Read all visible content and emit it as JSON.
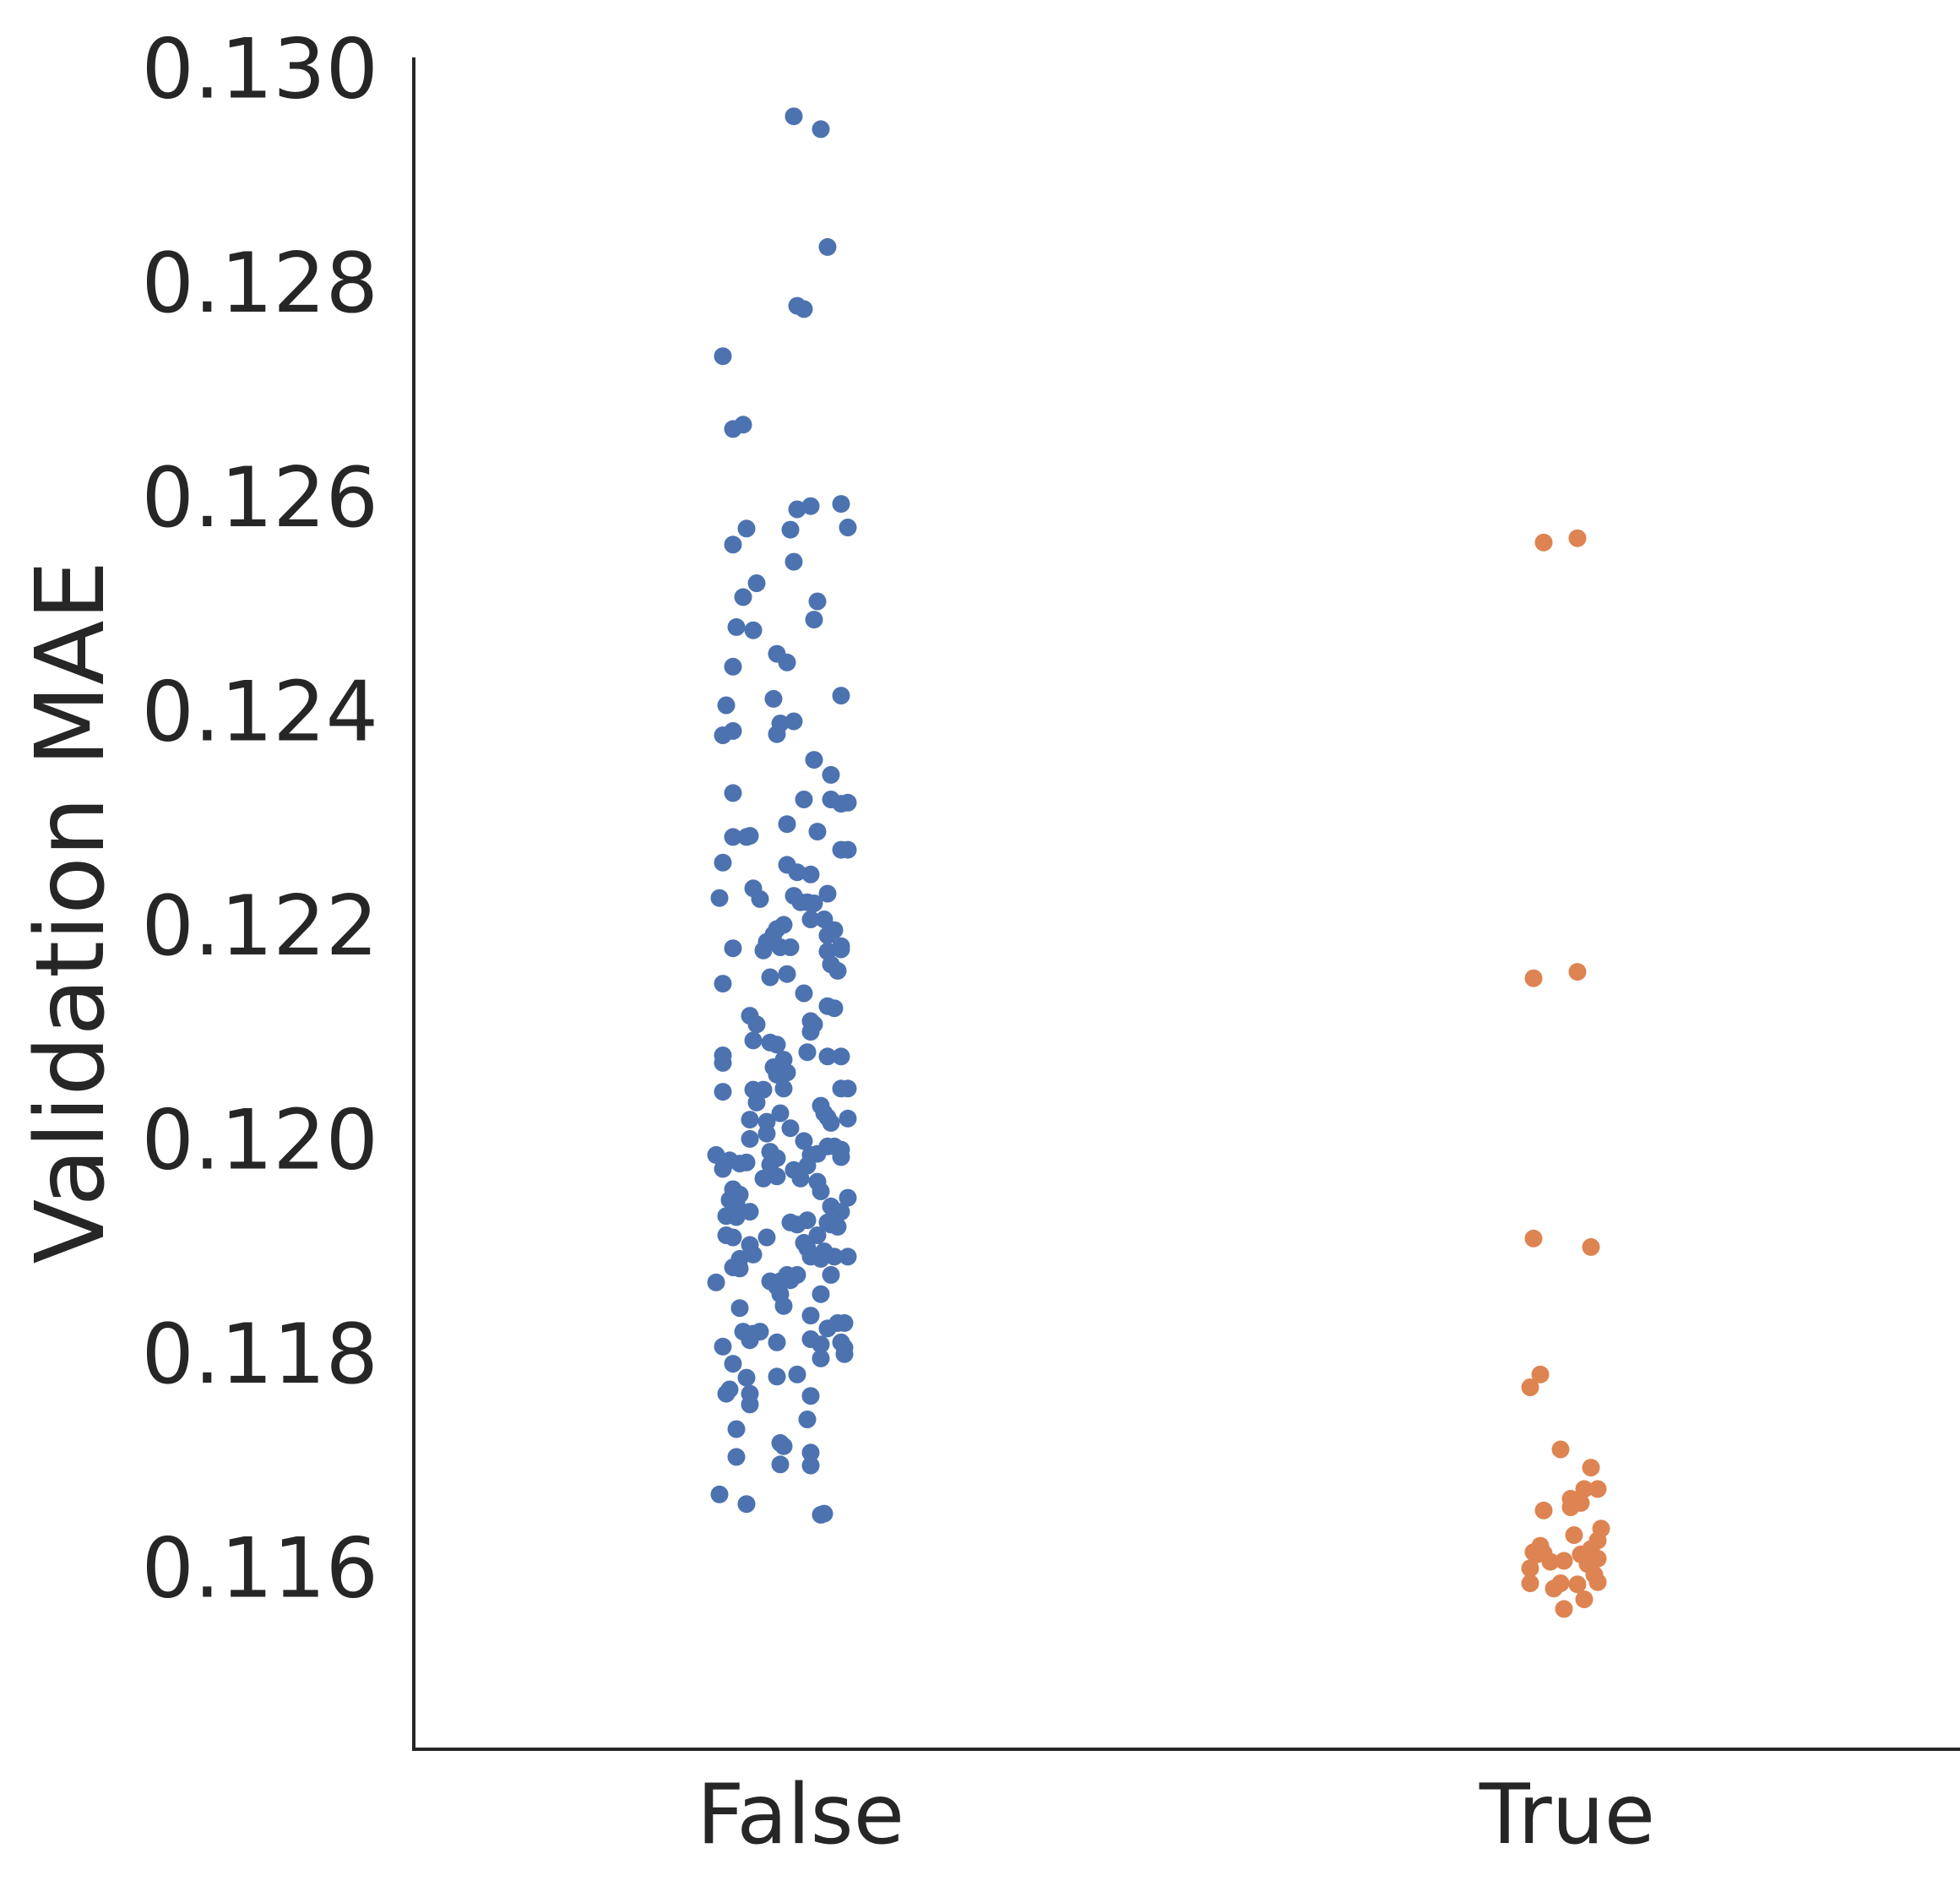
{
  "chart_data": {
    "type": "scatter",
    "ylabel": "Validation MAE",
    "xlabel": "",
    "categories": [
      "False",
      "True"
    ],
    "ylim": [
      0.1143,
      0.1301
    ],
    "yticks": [
      "0.116",
      "0.118",
      "0.120",
      "0.122",
      "0.124",
      "0.126",
      "0.128",
      "0.130"
    ],
    "grid": false,
    "legend": "none",
    "series": [
      {
        "category": "False",
        "color": "#4c72b0",
        "points": [
          [
            -0.02,
            0.12955
          ],
          [
            0.06,
            0.12943
          ],
          [
            0.08,
            0.12833
          ],
          [
            -0.01,
            0.12778
          ],
          [
            0.01,
            0.12775
          ],
          [
            -0.23,
            0.12731
          ],
          [
            -0.2,
            0.12663
          ],
          [
            -0.17,
            0.12667
          ],
          [
            -0.2,
            0.12555
          ],
          [
            -0.16,
            0.1257
          ],
          [
            -0.01,
            0.12588
          ],
          [
            0.03,
            0.12591
          ],
          [
            0.12,
            0.12593
          ],
          [
            -0.03,
            0.12569
          ],
          [
            0.14,
            0.12571
          ],
          [
            -0.02,
            0.12539
          ],
          [
            -0.17,
            0.12506
          ],
          [
            -0.13,
            0.12519
          ],
          [
            0.05,
            0.12502
          ],
          [
            0.04,
            0.12485
          ],
          [
            -0.19,
            0.12478
          ],
          [
            -0.14,
            0.12475
          ],
          [
            -0.07,
            0.12453
          ],
          [
            -0.04,
            0.12445
          ],
          [
            -0.2,
            0.12441
          ],
          [
            0.12,
            0.12414
          ],
          [
            -0.22,
            0.12405
          ],
          [
            -0.08,
            0.12411
          ],
          [
            -0.23,
            0.12377
          ],
          [
            -0.2,
            0.12381
          ],
          [
            -0.06,
            0.12388
          ],
          [
            -0.02,
            0.1239
          ],
          [
            -0.07,
            0.12378
          ],
          [
            0.04,
            0.12354
          ],
          [
            0.09,
            0.1234
          ],
          [
            -0.2,
            0.12323
          ],
          [
            0.01,
            0.12317
          ],
          [
            0.09,
            0.12317
          ],
          [
            0.12,
            0.12313
          ],
          [
            0.14,
            0.12314
          ],
          [
            -0.04,
            0.12294
          ],
          [
            0.05,
            0.12287
          ],
          [
            -0.2,
            0.12282
          ],
          [
            -0.16,
            0.12282
          ],
          [
            -0.15,
            0.12283
          ],
          [
            0.12,
            0.1227
          ],
          [
            0.14,
            0.1227
          ],
          [
            -0.23,
            0.12258
          ],
          [
            -0.04,
            0.12256
          ],
          [
            -0.01,
            0.12249
          ],
          [
            0.03,
            0.12247
          ],
          [
            -0.14,
            0.12234
          ],
          [
            -0.12,
            0.12224
          ],
          [
            -0.02,
            0.12227
          ],
          [
            0.08,
            0.12229
          ],
          [
            -0.24,
            0.12225
          ],
          [
            0.02,
            0.12221
          ],
          [
            0.04,
            0.1222
          ],
          [
            0.0,
            0.12221
          ],
          [
            -0.05,
            0.122
          ],
          [
            -0.07,
            0.12196
          ],
          [
            0.03,
            0.12205
          ],
          [
            0.07,
            0.12205
          ],
          [
            -0.08,
            0.12191
          ],
          [
            0.1,
            0.12195
          ],
          [
            -0.1,
            0.12184
          ],
          [
            -0.11,
            0.12176
          ],
          [
            -0.06,
            0.12179
          ],
          [
            -0.03,
            0.12179
          ],
          [
            0.08,
            0.1219
          ],
          [
            0.12,
            0.1218
          ],
          [
            -0.2,
            0.12178
          ],
          [
            0.08,
            0.12175
          ],
          [
            0.12,
            0.12177
          ],
          [
            0.09,
            0.12163
          ],
          [
            0.11,
            0.12157
          ],
          [
            -0.09,
            0.12151
          ],
          [
            -0.04,
            0.12154
          ],
          [
            0.01,
            0.12136
          ],
          [
            -0.23,
            0.12145
          ],
          [
            0.08,
            0.12124
          ],
          [
            0.1,
            0.12122
          ],
          [
            -0.15,
            0.12115
          ],
          [
            -0.13,
            0.12107
          ],
          [
            0.03,
            0.1211
          ],
          [
            0.04,
            0.12107
          ],
          [
            0.03,
            0.121
          ],
          [
            -0.14,
            0.12092
          ],
          [
            -0.09,
            0.1209
          ],
          [
            -0.07,
            0.12088
          ],
          [
            -0.23,
            0.12078
          ],
          [
            -0.23,
            0.12071
          ],
          [
            0.02,
            0.12081
          ],
          [
            0.08,
            0.12077
          ],
          [
            0.12,
            0.12077
          ],
          [
            -0.05,
            0.12074
          ],
          [
            -0.08,
            0.12067
          ],
          [
            -0.06,
            0.12062
          ],
          [
            -0.07,
            0.1206
          ],
          [
            -0.04,
            0.12062
          ],
          [
            -0.23,
            0.12044
          ],
          [
            -0.14,
            0.12046
          ],
          [
            -0.11,
            0.12046
          ],
          [
            -0.05,
            0.12047
          ],
          [
            0.06,
            0.12031
          ],
          [
            0.12,
            0.12047
          ],
          [
            0.14,
            0.12047
          ],
          [
            -0.13,
            0.12034
          ],
          [
            -0.06,
            0.12024
          ],
          [
            0.07,
            0.12024
          ],
          [
            0.08,
            0.1202
          ],
          [
            0.14,
            0.12019
          ],
          [
            -0.15,
            0.12018
          ],
          [
            -0.1,
            0.12016
          ],
          [
            0.09,
            0.12015
          ],
          [
            -0.03,
            0.1201
          ],
          [
            -0.15,
            0.12
          ],
          [
            -0.1,
            0.12005
          ],
          [
            0.01,
            0.11998
          ],
          [
            0.08,
            0.11993
          ],
          [
            0.1,
            0.11993
          ],
          [
            0.12,
            0.1199
          ],
          [
            -0.25,
            0.11985
          ],
          [
            -0.09,
            0.11988
          ],
          [
            -0.07,
            0.11982
          ],
          [
            -0.21,
            0.1198
          ],
          [
            -0.18,
            0.11977
          ],
          [
            -0.16,
            0.11978
          ],
          [
            0.03,
            0.11985
          ],
          [
            0.05,
            0.11986
          ],
          [
            0.12,
            0.11983
          ],
          [
            -0.23,
            0.11972
          ],
          [
            -0.09,
            0.11976
          ],
          [
            -0.02,
            0.11971
          ],
          [
            0.02,
            0.11975
          ],
          [
            0.05,
            0.1196
          ],
          [
            -0.11,
            0.11963
          ],
          [
            -0.07,
            0.11965
          ],
          [
            0.0,
            0.11963
          ],
          [
            -0.2,
            0.11953
          ],
          [
            -0.18,
            0.11948
          ],
          [
            0.06,
            0.11951
          ],
          [
            -0.21,
            0.11943
          ],
          [
            -0.19,
            0.1194
          ],
          [
            0.09,
            0.11937
          ],
          [
            0.12,
            0.11932
          ],
          [
            0.14,
            0.11945
          ],
          [
            -0.15,
            0.11932
          ],
          [
            -0.22,
            0.11928
          ],
          [
            -0.19,
            0.11927
          ],
          [
            -0.03,
            0.11922
          ],
          [
            -0.01,
            0.1192
          ],
          [
            0.02,
            0.11924
          ],
          [
            0.08,
            0.11922
          ],
          [
            0.09,
            0.1192
          ],
          [
            0.11,
            0.11918
          ],
          [
            -0.22,
            0.1191
          ],
          [
            -0.2,
            0.11908
          ],
          [
            -0.15,
            0.11901
          ],
          [
            -0.1,
            0.11908
          ],
          [
            0.05,
            0.1191
          ],
          [
            0.01,
            0.11903
          ],
          [
            0.02,
            0.11898
          ],
          [
            0.07,
            0.11895
          ],
          [
            -0.14,
            0.11892
          ],
          [
            -0.18,
            0.11888
          ],
          [
            -0.2,
            0.1188
          ],
          [
            -0.18,
            0.11879
          ],
          [
            0.03,
            0.1189
          ],
          [
            0.06,
            0.11888
          ],
          [
            0.1,
            0.1189
          ],
          [
            0.14,
            0.1189
          ],
          [
            -0.04,
            0.11873
          ],
          [
            -0.09,
            0.11867
          ],
          [
            -0.06,
            0.11867
          ],
          [
            -0.03,
            0.11868
          ],
          [
            -0.01,
            0.11873
          ],
          [
            0.09,
            0.11873
          ],
          [
            -0.25,
            0.11866
          ],
          [
            -0.07,
            0.11862
          ],
          [
            -0.06,
            0.11855
          ],
          [
            0.06,
            0.11855
          ],
          [
            -0.18,
            0.11842
          ],
          [
            -0.05,
            0.11844
          ],
          [
            0.03,
            0.11835
          ],
          [
            0.11,
            0.11828
          ],
          [
            0.13,
            0.11828
          ],
          [
            0.08,
            0.11823
          ],
          [
            -0.17,
            0.1182
          ],
          [
            -0.14,
            0.11818
          ],
          [
            -0.15,
            0.11812
          ],
          [
            -0.12,
            0.1182
          ],
          [
            -0.07,
            0.1181
          ],
          [
            0.03,
            0.11813
          ],
          [
            -0.23,
            0.11806
          ],
          [
            0.12,
            0.1181
          ],
          [
            0.13,
            0.11805
          ],
          [
            0.06,
            0.11808
          ],
          [
            0.13,
            0.11799
          ],
          [
            -0.2,
            0.1179
          ],
          [
            0.06,
            0.11795
          ],
          [
            -0.16,
            0.11777
          ],
          [
            -0.07,
            0.11778
          ],
          [
            -0.01,
            0.1178
          ],
          [
            -0.21,
            0.11766
          ],
          [
            -0.22,
            0.11762
          ],
          [
            -0.15,
            0.11762
          ],
          [
            0.03,
            0.1176
          ],
          [
            -0.15,
            0.11752
          ],
          [
            -0.19,
            0.11729
          ],
          [
            0.02,
            0.11738
          ],
          [
            -0.06,
            0.11716
          ],
          [
            -0.05,
            0.11713
          ],
          [
            0.03,
            0.11707
          ],
          [
            -0.19,
            0.11703
          ],
          [
            -0.06,
            0.11696
          ],
          [
            0.03,
            0.11695
          ],
          [
            -0.24,
            0.11668
          ],
          [
            -0.16,
            0.11659
          ],
          [
            0.06,
            0.11649
          ],
          [
            0.07,
            0.1165
          ]
        ]
      },
      {
        "category": "True",
        "color": "#dd8452",
        "points": [
          [
            -0.07,
            0.12557
          ],
          [
            0.03,
            0.12561
          ],
          [
            -0.1,
            0.1215
          ],
          [
            0.03,
            0.12156
          ],
          [
            -0.1,
            0.11907
          ],
          [
            0.07,
            0.11899
          ],
          [
            -0.11,
            0.11768
          ],
          [
            -0.08,
            0.1178
          ],
          [
            -0.02,
            0.1171
          ],
          [
            0.07,
            0.11693
          ],
          [
            0.05,
            0.11673
          ],
          [
            0.09,
            0.11673
          ],
          [
            0.01,
            0.11664
          ],
          [
            0.04,
            0.1166
          ],
          [
            0.01,
            0.11656
          ],
          [
            -0.07,
            0.11653
          ],
          [
            0.1,
            0.11636
          ],
          [
            0.02,
            0.1163
          ],
          [
            0.09,
            0.11625
          ],
          [
            0.07,
            0.11617
          ],
          [
            -0.08,
            0.1162
          ],
          [
            -0.1,
            0.11614
          ],
          [
            -0.09,
            0.11612
          ],
          [
            -0.07,
            0.11613
          ],
          [
            0.04,
            0.11612
          ],
          [
            0.09,
            0.11608
          ],
          [
            -0.05,
            0.11605
          ],
          [
            -0.01,
            0.11606
          ],
          [
            0.06,
            0.11603
          ],
          [
            -0.11,
            0.11599
          ],
          [
            0.08,
            0.11593
          ],
          [
            -0.02,
            0.11585
          ],
          [
            0.03,
            0.11584
          ],
          [
            -0.11,
            0.11585
          ],
          [
            -0.04,
            0.1158
          ],
          [
            0.09,
            0.11586
          ],
          [
            0.05,
            0.1157
          ],
          [
            -0.01,
            0.11561
          ]
        ]
      }
    ]
  }
}
